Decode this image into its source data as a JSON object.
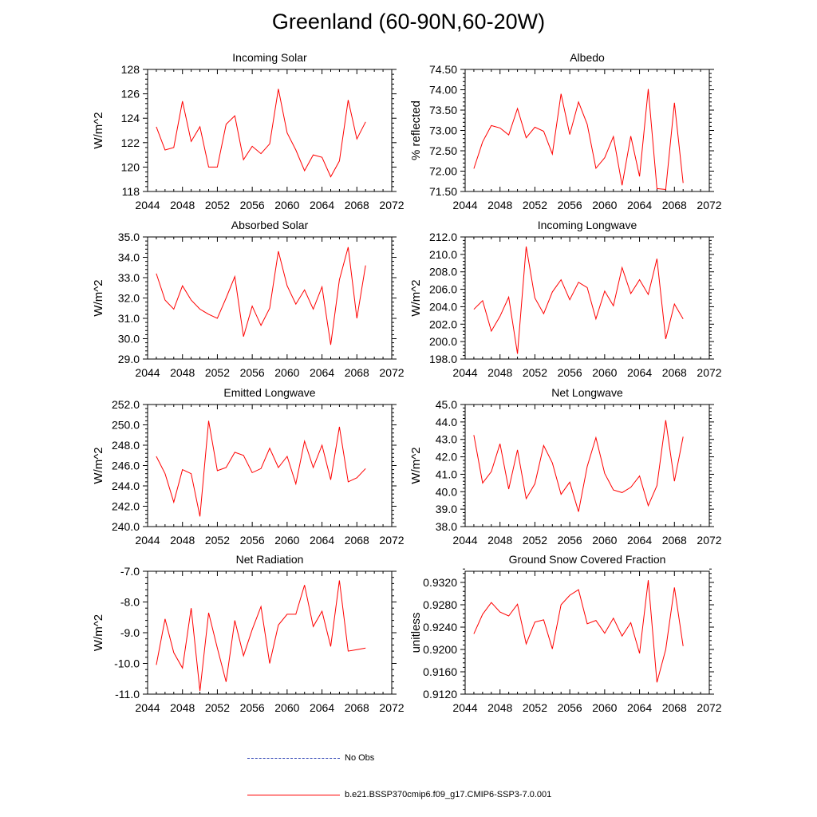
{
  "title": "Greenland (60-90N,60-20W)",
  "colors": {
    "model_line": "#ff0000",
    "obs_line": "#3b4fb8",
    "axis": "#000000"
  },
  "legend": {
    "obs_label": "No Obs",
    "model_label": "b.e21.BSSP370cmip6.f09_g17.CMIP6-SSP3-7.0.001"
  },
  "chart_data": [
    {
      "type": "line",
      "title": "Incoming Solar",
      "ylabel": "W/m^2",
      "xlim": [
        2044,
        2072
      ],
      "xticks": [
        2044,
        2048,
        2052,
        2056,
        2060,
        2064,
        2068,
        2072
      ],
      "ylim": [
        118,
        128
      ],
      "yticks": [
        118,
        120,
        122,
        124,
        126,
        128
      ],
      "ytick_labels": [
        "118",
        "120",
        "122",
        "124",
        "126",
        "128"
      ],
      "series": [
        {
          "x": [
            2045,
            2046,
            2047,
            2048,
            2049,
            2050,
            2051,
            2052,
            2053,
            2054,
            2055,
            2056,
            2057,
            2058,
            2059,
            2060,
            2061,
            2062,
            2063,
            2064,
            2065,
            2066,
            2067,
            2068,
            2069
          ],
          "values": [
            123.3,
            121.4,
            121.6,
            125.4,
            122.1,
            123.3,
            120.0,
            120.0,
            123.5,
            124.2,
            120.6,
            121.7,
            121.1,
            121.9,
            126.4,
            122.8,
            121.4,
            119.7,
            121.0,
            120.8,
            119.2,
            120.5,
            125.5,
            122.3,
            123.7
          ]
        }
      ]
    },
    {
      "type": "line",
      "title": "Albedo",
      "ylabel": "% reflected",
      "xlim": [
        2044,
        2072
      ],
      "xticks": [
        2044,
        2048,
        2052,
        2056,
        2060,
        2064,
        2068,
        2072
      ],
      "ylim": [
        71.5,
        74.5
      ],
      "yticks": [
        71.5,
        72.0,
        72.5,
        73.0,
        73.5,
        74.0,
        74.5
      ],
      "ytick_labels": [
        "71.50",
        "72.00",
        "72.50",
        "73.00",
        "73.50",
        "74.00",
        "74.50"
      ],
      "series": [
        {
          "x": [
            2045,
            2046,
            2047,
            2048,
            2049,
            2050,
            2051,
            2052,
            2053,
            2054,
            2055,
            2056,
            2057,
            2058,
            2059,
            2060,
            2061,
            2062,
            2063,
            2064,
            2065,
            2066,
            2067,
            2068,
            2069
          ],
          "values": [
            72.06,
            72.72,
            73.12,
            73.06,
            72.89,
            73.54,
            72.82,
            73.08,
            72.98,
            72.42,
            73.9,
            72.9,
            73.7,
            73.15,
            72.07,
            72.33,
            72.85,
            71.65,
            72.86,
            71.87,
            74.02,
            71.57,
            71.55,
            73.68,
            71.71
          ]
        }
      ]
    },
    {
      "type": "line",
      "title": "Absorbed Solar",
      "ylabel": "W/m^2",
      "xlim": [
        2044,
        2072
      ],
      "xticks": [
        2044,
        2048,
        2052,
        2056,
        2060,
        2064,
        2068,
        2072
      ],
      "ylim": [
        29,
        35
      ],
      "yticks": [
        29,
        30,
        31,
        32,
        33,
        34,
        35
      ],
      "ytick_labels": [
        "29.0",
        "30.0",
        "31.0",
        "32.0",
        "33.0",
        "34.0",
        "35.0"
      ],
      "series": [
        {
          "x": [
            2045,
            2046,
            2047,
            2048,
            2049,
            2050,
            2051,
            2052,
            2053,
            2054,
            2055,
            2056,
            2057,
            2058,
            2059,
            2060,
            2061,
            2062,
            2063,
            2064,
            2065,
            2066,
            2067,
            2068,
            2069
          ],
          "values": [
            33.2,
            31.9,
            31.45,
            32.6,
            31.9,
            31.45,
            31.2,
            31.0,
            32.0,
            33.05,
            30.1,
            31.6,
            30.65,
            31.5,
            34.3,
            32.6,
            31.7,
            32.4,
            31.45,
            32.55,
            29.7,
            32.9,
            34.5,
            31.0,
            33.6
          ]
        }
      ]
    },
    {
      "type": "line",
      "title": "Incoming Longwave",
      "ylabel": "W/m^2",
      "xlim": [
        2044,
        2072
      ],
      "xticks": [
        2044,
        2048,
        2052,
        2056,
        2060,
        2064,
        2068,
        2072
      ],
      "ylim": [
        198,
        212
      ],
      "yticks": [
        198,
        200,
        202,
        204,
        206,
        208,
        210,
        212
      ],
      "ytick_labels": [
        "198.0",
        "200.0",
        "202.0",
        "204.0",
        "206.0",
        "208.0",
        "210.0",
        "212.0"
      ],
      "series": [
        {
          "x": [
            2045,
            2046,
            2047,
            2048,
            2049,
            2050,
            2051,
            2052,
            2053,
            2054,
            2055,
            2056,
            2057,
            2058,
            2059,
            2060,
            2061,
            2062,
            2063,
            2064,
            2065,
            2066,
            2067,
            2068,
            2069
          ],
          "values": [
            203.7,
            204.7,
            201.2,
            202.9,
            205.1,
            198.6,
            210.9,
            205.0,
            203.2,
            205.7,
            207.1,
            204.8,
            206.8,
            206.2,
            202.6,
            205.8,
            204.1,
            208.5,
            205.5,
            207.1,
            205.4,
            209.5,
            200.3,
            204.3,
            202.6
          ]
        }
      ]
    },
    {
      "type": "line",
      "title": "Emitted Longwave",
      "ylabel": "W/m^2",
      "xlim": [
        2044,
        2072
      ],
      "xticks": [
        2044,
        2048,
        2052,
        2056,
        2060,
        2064,
        2068,
        2072
      ],
      "ylim": [
        240,
        252
      ],
      "yticks": [
        240,
        242,
        244,
        246,
        248,
        250,
        252
      ],
      "ytick_labels": [
        "240.0",
        "242.0",
        "244.0",
        "246.0",
        "248.0",
        "250.0",
        "252.0"
      ],
      "series": [
        {
          "x": [
            2045,
            2046,
            2047,
            2048,
            2049,
            2050,
            2051,
            2052,
            2053,
            2054,
            2055,
            2056,
            2057,
            2058,
            2059,
            2060,
            2061,
            2062,
            2063,
            2064,
            2065,
            2066,
            2067,
            2068,
            2069
          ],
          "values": [
            246.9,
            245.2,
            242.4,
            245.6,
            245.2,
            241.0,
            250.4,
            245.5,
            245.8,
            247.3,
            247.0,
            245.3,
            245.7,
            247.7,
            245.8,
            246.9,
            244.2,
            248.4,
            245.8,
            248.0,
            244.6,
            249.8,
            244.4,
            244.8,
            245.7
          ]
        }
      ]
    },
    {
      "type": "line",
      "title": "Net Longwave",
      "ylabel": "W/m^2",
      "xlim": [
        2044,
        2072
      ],
      "xticks": [
        2044,
        2048,
        2052,
        2056,
        2060,
        2064,
        2068,
        2072
      ],
      "ylim": [
        38,
        45
      ],
      "yticks": [
        38,
        39,
        40,
        41,
        42,
        43,
        44,
        45
      ],
      "ytick_labels": [
        "38.0",
        "39.0",
        "40.0",
        "41.0",
        "42.0",
        "43.0",
        "44.0",
        "45.0"
      ],
      "series": [
        {
          "x": [
            2045,
            2046,
            2047,
            2048,
            2049,
            2050,
            2051,
            2052,
            2053,
            2054,
            2055,
            2056,
            2057,
            2058,
            2059,
            2060,
            2061,
            2062,
            2063,
            2064,
            2065,
            2066,
            2067,
            2068,
            2069
          ],
          "values": [
            43.25,
            40.5,
            41.15,
            42.75,
            40.15,
            42.4,
            39.6,
            40.45,
            42.65,
            41.65,
            39.85,
            40.55,
            38.85,
            41.45,
            43.1,
            41.05,
            40.1,
            39.95,
            40.25,
            40.9,
            39.2,
            40.35,
            44.1,
            40.6,
            43.15
          ]
        }
      ]
    },
    {
      "type": "line",
      "title": "Net Radiation",
      "ylabel": "W/m^2",
      "xlim": [
        2044,
        2072
      ],
      "xticks": [
        2044,
        2048,
        2052,
        2056,
        2060,
        2064,
        2068,
        2072
      ],
      "ylim": [
        -11,
        -7
      ],
      "yticks": [
        -11,
        -10,
        -9,
        -8,
        -7
      ],
      "ytick_labels": [
        "-11.0",
        "-10.0",
        "-9.0",
        "-8.0",
        "-7.0"
      ],
      "series": [
        {
          "x": [
            2045,
            2046,
            2047,
            2048,
            2049,
            2050,
            2051,
            2052,
            2053,
            2054,
            2055,
            2056,
            2057,
            2058,
            2059,
            2060,
            2061,
            2062,
            2063,
            2064,
            2065,
            2066,
            2067,
            2068,
            2069
          ],
          "values": [
            -10.05,
            -8.55,
            -9.65,
            -10.15,
            -8.2,
            -10.9,
            -8.35,
            -9.5,
            -10.6,
            -8.6,
            -9.75,
            -8.9,
            -8.15,
            -10.0,
            -8.75,
            -8.4,
            -8.4,
            -7.45,
            -8.8,
            -8.3,
            -9.45,
            -7.3,
            -9.6,
            -9.55,
            -9.5
          ]
        }
      ]
    },
    {
      "type": "line",
      "title": "Ground Snow Covered Fraction",
      "ylabel": "unitless",
      "xlim": [
        2044,
        2072
      ],
      "xticks": [
        2044,
        2048,
        2052,
        2056,
        2060,
        2064,
        2068,
        2072
      ],
      "ylim": [
        0.912,
        0.934
      ],
      "yticks": [
        0.912,
        0.916,
        0.92,
        0.924,
        0.928,
        0.932
      ],
      "ytick_labels": [
        "0.9120",
        "0.9160",
        "0.9200",
        "0.9240",
        "0.9280",
        "0.9320"
      ],
      "series": [
        {
          "x": [
            2045,
            2046,
            2047,
            2048,
            2049,
            2050,
            2051,
            2052,
            2053,
            2054,
            2055,
            2056,
            2057,
            2058,
            2059,
            2060,
            2061,
            2062,
            2063,
            2064,
            2065,
            2066,
            2067,
            2068,
            2069
          ],
          "values": [
            0.9228,
            0.9263,
            0.9284,
            0.9267,
            0.926,
            0.9281,
            0.921,
            0.9249,
            0.9253,
            0.9201,
            0.928,
            0.9297,
            0.9307,
            0.9246,
            0.9252,
            0.9229,
            0.9256,
            0.9224,
            0.9248,
            0.9193,
            0.9324,
            0.9141,
            0.92,
            0.9311,
            0.9206
          ]
        }
      ]
    }
  ]
}
